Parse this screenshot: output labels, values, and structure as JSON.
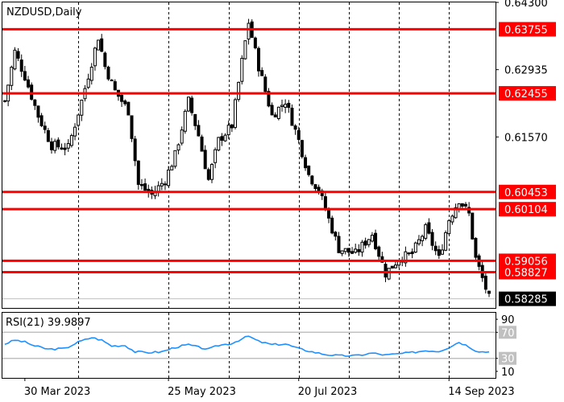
{
  "chart_data": [
    {
      "type": "candlestick",
      "symbol": "NZDUSD",
      "timeframe": "Daily",
      "title": "NZDUSD,Daily",
      "x_tick_labels": [
        "30 Mar 2023",
        "25 May 2023",
        "20 Jul 2023",
        "14 Sep 2023"
      ],
      "y_tick_labels": [
        "0.64300",
        "0.62935",
        "0.61570"
      ],
      "ylim": [
        0.581,
        0.643
      ],
      "grid": true,
      "current_price": "0.58285",
      "levels": [
        {
          "label": "0.63755",
          "value": 0.63755
        },
        {
          "label": "0.62455",
          "value": 0.62455
        },
        {
          "label": "0.60453",
          "value": 0.60453
        },
        {
          "label": "0.60104",
          "value": 0.60104
        },
        {
          "label": "0.59056",
          "value": 0.59056
        },
        {
          "label": "0.58827",
          "value": 0.58827
        }
      ],
      "price_waypoints": [
        [
          0,
          0.623
        ],
        [
          3,
          0.633
        ],
        [
          6,
          0.628
        ],
        [
          10,
          0.62
        ],
        [
          14,
          0.614
        ],
        [
          19,
          0.6135
        ],
        [
          23,
          0.623
        ],
        [
          28,
          0.636
        ],
        [
          30,
          0.63
        ],
        [
          33,
          0.625
        ],
        [
          37,
          0.621
        ],
        [
          40,
          0.606
        ],
        [
          44,
          0.604
        ],
        [
          48,
          0.607
        ],
        [
          51,
          0.612
        ],
        [
          55,
          0.623
        ],
        [
          58,
          0.616
        ],
        [
          61,
          0.607
        ],
        [
          64,
          0.615
        ],
        [
          68,
          0.618
        ],
        [
          71,
          0.631
        ],
        [
          73,
          0.639
        ],
        [
          76,
          0.63
        ],
        [
          80,
          0.62
        ],
        [
          84,
          0.623
        ],
        [
          88,
          0.615
        ],
        [
          91,
          0.608
        ],
        [
          94,
          0.605
        ],
        [
          97,
          0.599
        ],
        [
          100,
          0.593
        ],
        [
          105,
          0.592
        ],
        [
          110,
          0.596
        ],
        [
          114,
          0.588
        ],
        [
          118,
          0.591
        ],
        [
          122,
          0.592
        ],
        [
          126,
          0.597
        ],
        [
          130,
          0.591
        ],
        [
          133,
          0.599
        ],
        [
          136,
          0.603
        ],
        [
          139,
          0.6
        ],
        [
          141,
          0.591
        ],
        [
          143,
          0.587
        ],
        [
          145,
          0.583
        ]
      ]
    },
    {
      "type": "line",
      "indicator": "RSI",
      "period": 21,
      "label": "RSI(21) 39.9897",
      "current_value": 39.9897,
      "ylim": [
        0,
        100
      ],
      "levels": [
        70,
        30
      ],
      "y_tick_labels": [
        "90",
        "70",
        "30",
        "10"
      ],
      "waypoints": [
        [
          0,
          52
        ],
        [
          3,
          58
        ],
        [
          6,
          55
        ],
        [
          9,
          49
        ],
        [
          13,
          44
        ],
        [
          18,
          45
        ],
        [
          22,
          55
        ],
        [
          26,
          62
        ],
        [
          29,
          58
        ],
        [
          32,
          49
        ],
        [
          36,
          50
        ],
        [
          39,
          40
        ],
        [
          43,
          39
        ],
        [
          47,
          40
        ],
        [
          51,
          47
        ],
        [
          55,
          51
        ],
        [
          58,
          47
        ],
        [
          61,
          44
        ],
        [
          64,
          50
        ],
        [
          68,
          53
        ],
        [
          71,
          60
        ],
        [
          73,
          64
        ],
        [
          76,
          56
        ],
        [
          80,
          51
        ],
        [
          84,
          52
        ],
        [
          88,
          45
        ],
        [
          92,
          40
        ],
        [
          96,
          36
        ],
        [
          100,
          34
        ],
        [
          105,
          34
        ],
        [
          110,
          38
        ],
        [
          114,
          35
        ],
        [
          118,
          37
        ],
        [
          122,
          39
        ],
        [
          126,
          42
        ],
        [
          130,
          41
        ],
        [
          133,
          47
        ],
        [
          136,
          55
        ],
        [
          139,
          48
        ],
        [
          141,
          42
        ],
        [
          143,
          40
        ],
        [
          145,
          40
        ]
      ]
    }
  ]
}
